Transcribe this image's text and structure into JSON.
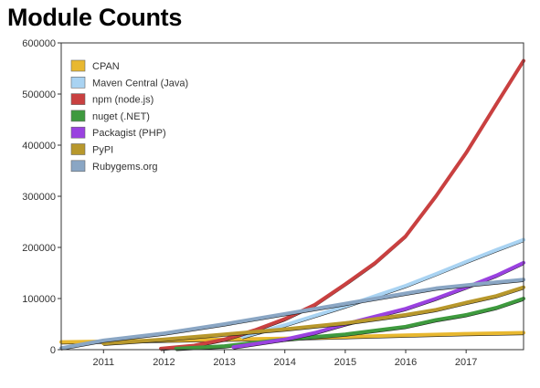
{
  "page": {
    "title": "Module Counts"
  },
  "chart_data": {
    "type": "line",
    "title": "Module Counts",
    "xlabel": "",
    "ylabel": "",
    "xlim": [
      2010.3,
      2017.95
    ],
    "ylim": [
      0,
      600000
    ],
    "x_ticks": [
      "2011",
      "2012",
      "2013",
      "2014",
      "2015",
      "2016",
      "2017"
    ],
    "x_tick_values": [
      2011,
      2012,
      2013,
      2014,
      2015,
      2016,
      2017
    ],
    "y_ticks": [
      "0",
      "100000",
      "200000",
      "300000",
      "400000",
      "500000",
      "600000"
    ],
    "y_tick_values": [
      0,
      100000,
      200000,
      300000,
      400000,
      500000,
      600000
    ],
    "grid": false,
    "legend_position": "top-left",
    "series": [
      {
        "name": "CPAN",
        "color": "#e8b830",
        "x": [
          2010.3,
          2011,
          2012,
          2013,
          2014,
          2015,
          2016,
          2017,
          2017.95
        ],
        "y": [
          15000,
          16000,
          18000,
          20000,
          22000,
          25000,
          28000,
          31000,
          33000
        ]
      },
      {
        "name": "Maven Central (Java)",
        "color": "#a9d3f2",
        "x": [
          2013.3,
          2014,
          2015,
          2015.5,
          2016,
          2016.5,
          2017,
          2017.5,
          2017.95
        ],
        "y": [
          25000,
          48000,
          85000,
          105000,
          125000,
          148000,
          172000,
          195000,
          215000
        ]
      },
      {
        "name": "npm (node.js)",
        "color": "#c94040",
        "x": [
          2011.95,
          2012.5,
          2013,
          2013.5,
          2014,
          2014.5,
          2015,
          2015.5,
          2016,
          2016.5,
          2017,
          2017.5,
          2017.95
        ],
        "y": [
          2000,
          8000,
          20000,
          38000,
          60000,
          88000,
          128000,
          170000,
          222000,
          300000,
          385000,
          480000,
          565000
        ]
      },
      {
        "name": "nuget (.NET)",
        "color": "#3e9a3e",
        "x": [
          2012.2,
          2013,
          2014,
          2015,
          2016,
          2016.5,
          2017,
          2017.5,
          2017.95
        ],
        "y": [
          2000,
          7000,
          20000,
          30000,
          45000,
          58000,
          68000,
          82000,
          100000
        ]
      },
      {
        "name": "Packagist (PHP)",
        "color": "#9a42e0",
        "x": [
          2013.15,
          2014,
          2014.5,
          2015,
          2015.5,
          2016,
          2016.5,
          2017,
          2017.5,
          2017.95
        ],
        "y": [
          5000,
          20000,
          33000,
          50000,
          65000,
          80000,
          100000,
          122000,
          145000,
          170000
        ]
      },
      {
        "name": "PyPI",
        "color": "#b8982c",
        "x": [
          2011,
          2012,
          2013,
          2014,
          2015,
          2016,
          2016.5,
          2017,
          2017.5,
          2017.95
        ],
        "y": [
          12000,
          20000,
          30000,
          40000,
          52000,
          68000,
          78000,
          92000,
          105000,
          122000
        ]
      },
      {
        "name": "Rubygems.org",
        "color": "#8aa6c4",
        "x": [
          2010.3,
          2011,
          2012,
          2013,
          2014,
          2015,
          2016,
          2016.5,
          2017,
          2017.5,
          2017.95
        ],
        "y": [
          3000,
          18000,
          32000,
          50000,
          70000,
          90000,
          110000,
          120000,
          126000,
          132000,
          137000
        ]
      }
    ]
  }
}
